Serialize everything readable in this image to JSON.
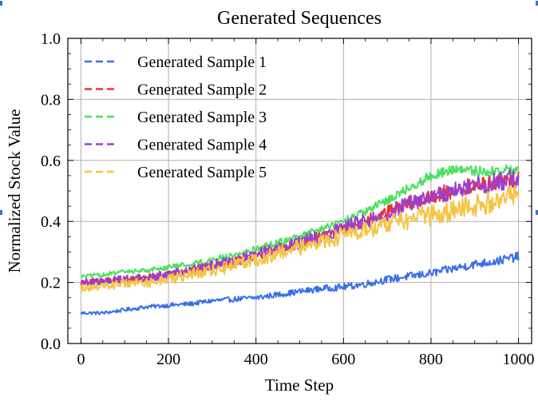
{
  "chart_data": {
    "type": "line",
    "title": "Generated Sequences",
    "xlabel": "Time Step",
    "ylabel": "Normalized Stock Value",
    "xlim": [
      -30,
      1030
    ],
    "ylim": [
      0.0,
      1.0
    ],
    "xticks": [
      0,
      200,
      400,
      600,
      800,
      1000
    ],
    "xtick_labels": [
      "0",
      "200",
      "400",
      "600",
      "800",
      "1000"
    ],
    "yticks": [
      0.0,
      0.2,
      0.4,
      0.6,
      0.8,
      1.0
    ],
    "ytick_labels": [
      "0.0",
      "0.2",
      "0.4",
      "0.6",
      "0.8",
      "1.0"
    ],
    "grid": true,
    "legend_position": "top-left",
    "series": [
      {
        "name": "Generated Sample 1",
        "color": "#3b6fe8",
        "noise": 0.01,
        "x": [
          0,
          50,
          100,
          150,
          200,
          250,
          300,
          350,
          400,
          450,
          500,
          550,
          600,
          650,
          700,
          750,
          800,
          850,
          900,
          950,
          1000
        ],
        "values": [
          0.1,
          0.1,
          0.11,
          0.12,
          0.125,
          0.13,
          0.14,
          0.145,
          0.15,
          0.16,
          0.17,
          0.18,
          0.185,
          0.195,
          0.21,
          0.22,
          0.23,
          0.245,
          0.26,
          0.27,
          0.285
        ]
      },
      {
        "name": "Generated Sample 2",
        "color": "#e8323c",
        "noise": 0.018,
        "x": [
          0,
          50,
          100,
          150,
          200,
          250,
          300,
          350,
          400,
          450,
          500,
          550,
          600,
          650,
          700,
          750,
          800,
          850,
          900,
          950,
          1000
        ],
        "values": [
          0.2,
          0.205,
          0.21,
          0.215,
          0.225,
          0.24,
          0.255,
          0.27,
          0.29,
          0.31,
          0.33,
          0.355,
          0.38,
          0.4,
          0.43,
          0.46,
          0.48,
          0.5,
          0.515,
          0.53,
          0.54
        ]
      },
      {
        "name": "Generated Sample 3",
        "color": "#4de060",
        "noise": 0.012,
        "x": [
          0,
          50,
          100,
          150,
          200,
          250,
          300,
          350,
          400,
          450,
          500,
          550,
          600,
          650,
          700,
          750,
          800,
          850,
          900,
          950,
          1000
        ],
        "values": [
          0.22,
          0.225,
          0.235,
          0.24,
          0.25,
          0.26,
          0.275,
          0.29,
          0.31,
          0.33,
          0.35,
          0.375,
          0.4,
          0.43,
          0.47,
          0.51,
          0.55,
          0.57,
          0.565,
          0.565,
          0.57
        ]
      },
      {
        "name": "Generated Sample 4",
        "color": "#9b3fd0",
        "noise": 0.022,
        "x": [
          0,
          50,
          100,
          150,
          200,
          250,
          300,
          350,
          400,
          450,
          500,
          550,
          600,
          650,
          700,
          750,
          800,
          850,
          900,
          950,
          1000
        ],
        "values": [
          0.2,
          0.205,
          0.21,
          0.215,
          0.225,
          0.24,
          0.255,
          0.27,
          0.29,
          0.31,
          0.33,
          0.355,
          0.38,
          0.4,
          0.43,
          0.46,
          0.48,
          0.5,
          0.515,
          0.53,
          0.545
        ]
      },
      {
        "name": "Generated Sample 5",
        "color": "#f5c443",
        "noise": 0.026,
        "x": [
          0,
          50,
          100,
          150,
          200,
          250,
          300,
          350,
          400,
          450,
          500,
          550,
          600,
          650,
          700,
          750,
          800,
          850,
          900,
          950,
          1000
        ],
        "values": [
          0.18,
          0.19,
          0.195,
          0.2,
          0.21,
          0.225,
          0.24,
          0.255,
          0.275,
          0.295,
          0.315,
          0.335,
          0.355,
          0.37,
          0.39,
          0.405,
          0.42,
          0.435,
          0.45,
          0.47,
          0.49
        ]
      }
    ]
  }
}
